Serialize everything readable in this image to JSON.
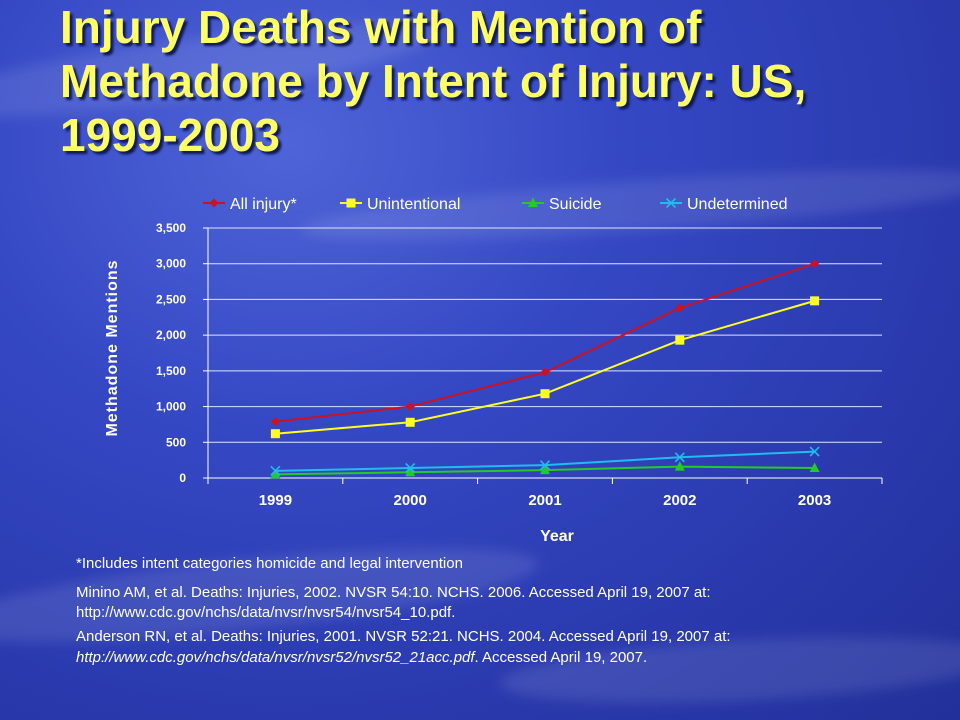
{
  "slide": {
    "title": "Injury Deaths with Mention of\nMethadone by Intent of Injury: US,\n1999-2003",
    "footnote": "*Includes intent categories homicide and legal intervention",
    "ref1_text": "Minino AM, et al. Deaths: Injuries, 2002. NVSR 54:10. NCHS. 2006. Accessed April 19, 2007 at:",
    "ref1_url": "http://www.cdc.gov/nchs/data/nvsr/nvsr54/nvsr54_10.pdf.",
    "ref2_text": "Anderson RN, et al. Deaths: Injuries, 2001. NVSR 52:21. NCHS. 2004. Accessed April 19, 2007 at:",
    "ref2_url": "http://www.cdc.gov/nchs/data/nvsr/nvsr52/nvsr52_21acc.pdf",
    "ref2_suffix": ". Accessed April 19, 2007."
  },
  "chart_data": {
    "type": "line",
    "x": [
      "1999",
      "2000",
      "2001",
      "2002",
      "2003"
    ],
    "xlabel": "Year",
    "ylabel": "Methadone Mentions",
    "ylim": [
      0,
      3500
    ],
    "yticks": [
      0,
      500,
      1000,
      1500,
      2000,
      2500,
      3000,
      3500
    ],
    "ytick_labels": [
      "0",
      "500",
      "1,000",
      "1,500",
      "2,000",
      "2,500",
      "3,000",
      "3,500"
    ],
    "grid": true,
    "legend": "top",
    "series": [
      {
        "name": "All injury*",
        "color": "#cc1122",
        "marker": "diamond",
        "values": [
          790,
          1000,
          1480,
          2380,
          3000
        ]
      },
      {
        "name": "Unintentional",
        "color": "#ffff22",
        "marker": "square",
        "values": [
          620,
          780,
          1180,
          1930,
          2480
        ]
      },
      {
        "name": "Suicide",
        "color": "#22cc22",
        "marker": "triangle",
        "values": [
          50,
          80,
          110,
          160,
          140
        ]
      },
      {
        "name": "Undetermined",
        "color": "#22bbee",
        "marker": "x",
        "values": [
          100,
          140,
          180,
          290,
          370
        ]
      }
    ]
  }
}
